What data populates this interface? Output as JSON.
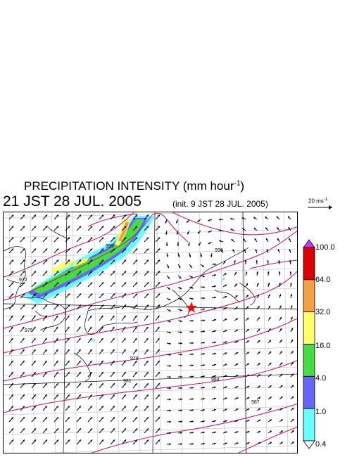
{
  "header": {
    "title": "PRECIPITATION INTENSITY (mm hour",
    "title_exp": "-1",
    "title_close": ")",
    "datetime": "21 JST 28 JUL. 2005",
    "init": "(init. 9 JST 28 JUL. 2005)"
  },
  "scale": {
    "label": "20 ms",
    "label_exp": "-1"
  },
  "contour_labels": [
    "999",
    "972",
    "975",
    "978",
    "981",
    "984",
    "987",
    "990"
  ],
  "colorbar": {
    "labels": [
      "100.0",
      "64.0",
      "32.0",
      "16.0",
      "4.0",
      "1.0",
      "0.4"
    ],
    "colors": [
      "#dd0000",
      "#f5a040",
      "#ffff66",
      "#44dd44",
      "#6666ff",
      "#66ffff"
    ],
    "over_color": "#cc33ff",
    "under_color": "#ffffff"
  },
  "colors": {
    "isobar": "#cc1166",
    "grid": "#b0b0b0",
    "coast": "#000000",
    "marker": "#ff0000"
  },
  "marker_icon": "star-icon"
}
